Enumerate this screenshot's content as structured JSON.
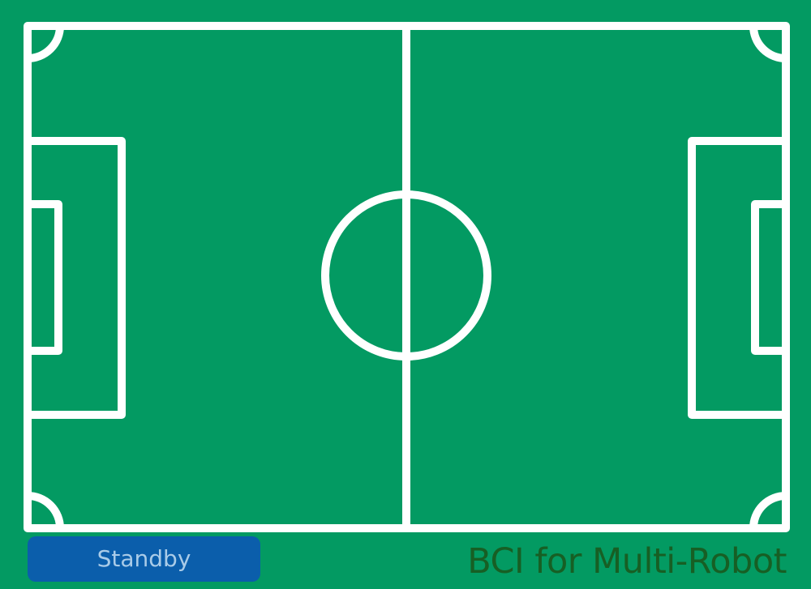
{
  "app": {
    "title": "BCI for Multi-Robot"
  },
  "controls": {
    "status_label": "Standby"
  },
  "colors": {
    "field": "#039a62",
    "lines": "#ffffff",
    "status_button": "#0b5eab",
    "status_text": "#a9cbe8",
    "title_text": "#175f24"
  }
}
